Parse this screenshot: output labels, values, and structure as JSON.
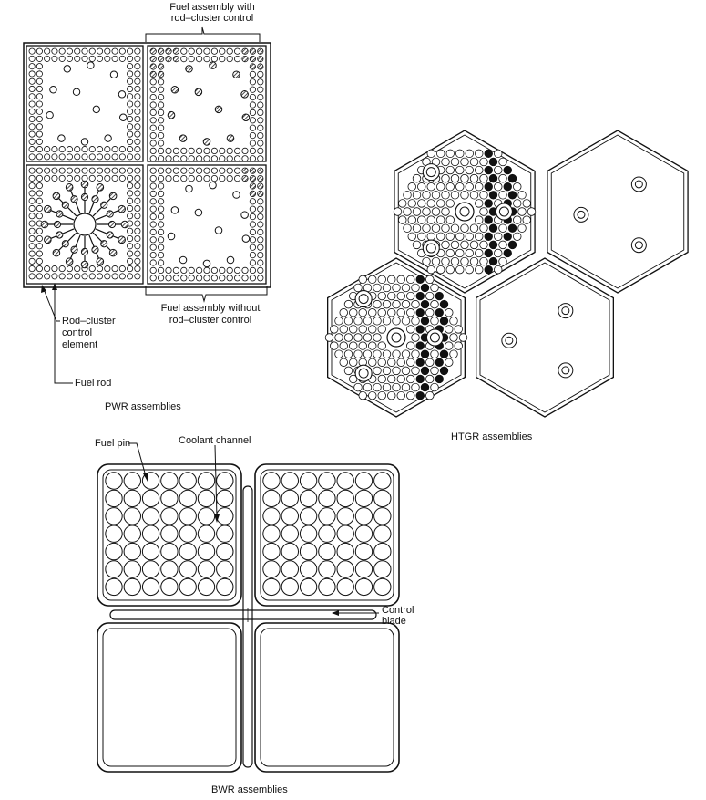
{
  "pwr": {
    "caption": "PWR assemblies",
    "with_control_line1": "Fuel assembly with",
    "with_control_line2": "rod–cluster control",
    "without_control_line1": "Fuel assembly without",
    "without_control_line2": "rod–cluster control",
    "rcc_line1": "Rod–cluster",
    "rcc_line2": "control",
    "rcc_line3": "element",
    "fuel_rod": "Fuel rod"
  },
  "htgr": {
    "caption": "HTGR assemblies"
  },
  "bwr": {
    "caption": "BWR assemblies",
    "fuel_pin": "Fuel pin",
    "coolant_channel": "Coolant channel",
    "control_line1": "Control",
    "control_line2": "blade"
  },
  "colors": {
    "ink": "#111111",
    "hatch": "#555555",
    "paper": "#ffffff"
  }
}
